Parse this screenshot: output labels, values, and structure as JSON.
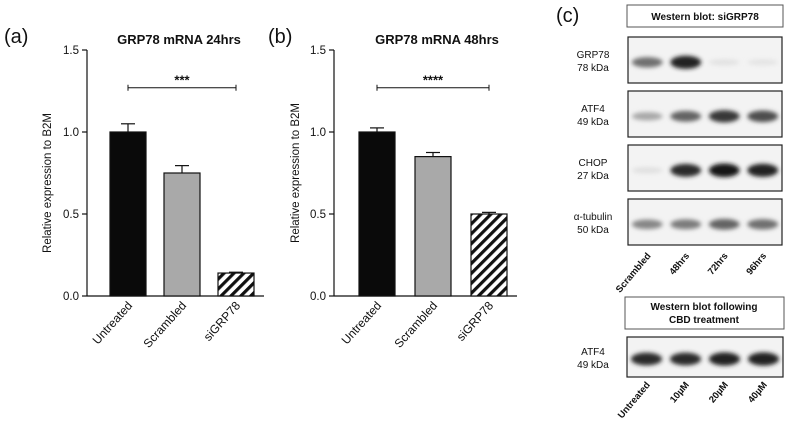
{
  "panels": {
    "a": "(a)",
    "b": "(b)",
    "c": "(c)"
  },
  "chart_data": [
    {
      "type": "bar",
      "title": "GRP78 mRNA 24hrs",
      "ylabel": "Relative expression to B2M",
      "xlabel": "",
      "categories": [
        "Untreated",
        "Scrambled",
        "siGRP78"
      ],
      "values": [
        1.0,
        0.75,
        0.14
      ],
      "errors": [
        0.05,
        0.045,
        0.005
      ],
      "fills": [
        "solid-black",
        "solid-grey",
        "hatched"
      ],
      "ylim": [
        0,
        1.5
      ],
      "yticks": [
        "0.0",
        "0.5",
        "1.0",
        "1.5"
      ],
      "significance": {
        "label": "***",
        "from": "Untreated",
        "to": "siGRP78"
      },
      "colors": {
        "black": "#0a0a0a",
        "grey": "#a9a9a9"
      }
    },
    {
      "type": "bar",
      "title": "GRP78 mRNA 48hrs",
      "ylabel": "Relative expression to B2M",
      "xlabel": "",
      "categories": [
        "Untreated",
        "Scrambled",
        "siGRP78"
      ],
      "values": [
        1.0,
        0.85,
        0.5
      ],
      "errors": [
        0.025,
        0.025,
        0.01
      ],
      "fills": [
        "solid-black",
        "solid-grey",
        "hatched"
      ],
      "ylim": [
        0,
        1.5
      ],
      "yticks": [
        "0.0",
        "0.5",
        "1.0",
        "1.5"
      ],
      "significance": {
        "label": "****",
        "from": "Untreated",
        "to": "siGRP78"
      },
      "colors": {
        "black": "#0a0a0a",
        "grey": "#a9a9a9"
      }
    }
  ],
  "western_blot_1": {
    "title": "Western blot: siGRP78",
    "proteins": [
      {
        "name": "GRP78",
        "size": "78 kDa",
        "intensities": [
          0.55,
          0.9,
          0.04,
          0.03
        ]
      },
      {
        "name": "ATF4",
        "size": "49 kDa",
        "intensities": [
          0.3,
          0.6,
          0.8,
          0.7
        ]
      },
      {
        "name": "CHOP",
        "size": "27 kDa",
        "intensities": [
          0.05,
          0.85,
          0.95,
          0.9
        ]
      },
      {
        "name": "α-tubulin",
        "size": "50 kDa",
        "intensities": [
          0.45,
          0.5,
          0.6,
          0.55
        ]
      }
    ],
    "lanes": [
      "Scrambled",
      "48hrs",
      "72hrs",
      "96hrs"
    ]
  },
  "western_blot_2": {
    "title_line1": "Western blot following",
    "title_line2": "CBD treatment",
    "proteins": [
      {
        "name": "ATF4",
        "size": "49 kDa",
        "intensities": [
          0.85,
          0.85,
          0.9,
          0.9
        ]
      }
    ],
    "lanes": [
      "Untreated",
      "10µM",
      "20µM",
      "40µM"
    ]
  }
}
